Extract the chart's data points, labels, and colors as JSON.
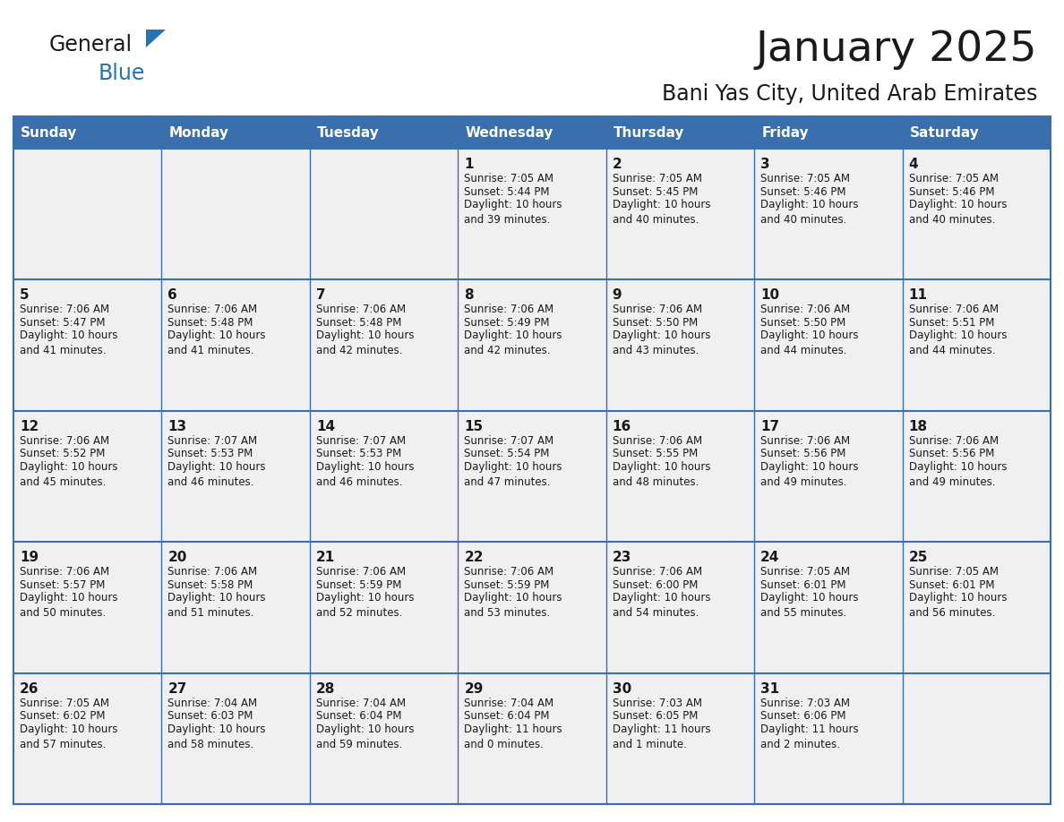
{
  "title": "January 2025",
  "subtitle": "Bani Yas City, United Arab Emirates",
  "days_of_week": [
    "Sunday",
    "Monday",
    "Tuesday",
    "Wednesday",
    "Thursday",
    "Friday",
    "Saturday"
  ],
  "header_bg": "#3a6fad",
  "header_text": "#FFFFFF",
  "cell_bg": "#f0f0f0",
  "cell_bg_empty_row": "#f0f0f0",
  "cell_border_color": "#3a6fad",
  "row_separator_color": "#3a6fad",
  "title_color": "#1a1a1a",
  "subtitle_color": "#1a1a1a",
  "logo_general_color": "#1a1a1a",
  "logo_blue_color": "#2575b5",
  "logo_triangle_color": "#2575b5",
  "calendar_data": [
    [
      {
        "day": null,
        "sunrise": null,
        "sunset": null,
        "daylight": null
      },
      {
        "day": null,
        "sunrise": null,
        "sunset": null,
        "daylight": null
      },
      {
        "day": null,
        "sunrise": null,
        "sunset": null,
        "daylight": null
      },
      {
        "day": 1,
        "sunrise": "7:05 AM",
        "sunset": "5:44 PM",
        "daylight": "10 hours\nand 39 minutes."
      },
      {
        "day": 2,
        "sunrise": "7:05 AM",
        "sunset": "5:45 PM",
        "daylight": "10 hours\nand 40 minutes."
      },
      {
        "day": 3,
        "sunrise": "7:05 AM",
        "sunset": "5:46 PM",
        "daylight": "10 hours\nand 40 minutes."
      },
      {
        "day": 4,
        "sunrise": "7:05 AM",
        "sunset": "5:46 PM",
        "daylight": "10 hours\nand 40 minutes."
      }
    ],
    [
      {
        "day": 5,
        "sunrise": "7:06 AM",
        "sunset": "5:47 PM",
        "daylight": "10 hours\nand 41 minutes."
      },
      {
        "day": 6,
        "sunrise": "7:06 AM",
        "sunset": "5:48 PM",
        "daylight": "10 hours\nand 41 minutes."
      },
      {
        "day": 7,
        "sunrise": "7:06 AM",
        "sunset": "5:48 PM",
        "daylight": "10 hours\nand 42 minutes."
      },
      {
        "day": 8,
        "sunrise": "7:06 AM",
        "sunset": "5:49 PM",
        "daylight": "10 hours\nand 42 minutes."
      },
      {
        "day": 9,
        "sunrise": "7:06 AM",
        "sunset": "5:50 PM",
        "daylight": "10 hours\nand 43 minutes."
      },
      {
        "day": 10,
        "sunrise": "7:06 AM",
        "sunset": "5:50 PM",
        "daylight": "10 hours\nand 44 minutes."
      },
      {
        "day": 11,
        "sunrise": "7:06 AM",
        "sunset": "5:51 PM",
        "daylight": "10 hours\nand 44 minutes."
      }
    ],
    [
      {
        "day": 12,
        "sunrise": "7:06 AM",
        "sunset": "5:52 PM",
        "daylight": "10 hours\nand 45 minutes."
      },
      {
        "day": 13,
        "sunrise": "7:07 AM",
        "sunset": "5:53 PM",
        "daylight": "10 hours\nand 46 minutes."
      },
      {
        "day": 14,
        "sunrise": "7:07 AM",
        "sunset": "5:53 PM",
        "daylight": "10 hours\nand 46 minutes."
      },
      {
        "day": 15,
        "sunrise": "7:07 AM",
        "sunset": "5:54 PM",
        "daylight": "10 hours\nand 47 minutes."
      },
      {
        "day": 16,
        "sunrise": "7:06 AM",
        "sunset": "5:55 PM",
        "daylight": "10 hours\nand 48 minutes."
      },
      {
        "day": 17,
        "sunrise": "7:06 AM",
        "sunset": "5:56 PM",
        "daylight": "10 hours\nand 49 minutes."
      },
      {
        "day": 18,
        "sunrise": "7:06 AM",
        "sunset": "5:56 PM",
        "daylight": "10 hours\nand 49 minutes."
      }
    ],
    [
      {
        "day": 19,
        "sunrise": "7:06 AM",
        "sunset": "5:57 PM",
        "daylight": "10 hours\nand 50 minutes."
      },
      {
        "day": 20,
        "sunrise": "7:06 AM",
        "sunset": "5:58 PM",
        "daylight": "10 hours\nand 51 minutes."
      },
      {
        "day": 21,
        "sunrise": "7:06 AM",
        "sunset": "5:59 PM",
        "daylight": "10 hours\nand 52 minutes."
      },
      {
        "day": 22,
        "sunrise": "7:06 AM",
        "sunset": "5:59 PM",
        "daylight": "10 hours\nand 53 minutes."
      },
      {
        "day": 23,
        "sunrise": "7:06 AM",
        "sunset": "6:00 PM",
        "daylight": "10 hours\nand 54 minutes."
      },
      {
        "day": 24,
        "sunrise": "7:05 AM",
        "sunset": "6:01 PM",
        "daylight": "10 hours\nand 55 minutes."
      },
      {
        "day": 25,
        "sunrise": "7:05 AM",
        "sunset": "6:01 PM",
        "daylight": "10 hours\nand 56 minutes."
      }
    ],
    [
      {
        "day": 26,
        "sunrise": "7:05 AM",
        "sunset": "6:02 PM",
        "daylight": "10 hours\nand 57 minutes."
      },
      {
        "day": 27,
        "sunrise": "7:04 AM",
        "sunset": "6:03 PM",
        "daylight": "10 hours\nand 58 minutes."
      },
      {
        "day": 28,
        "sunrise": "7:04 AM",
        "sunset": "6:04 PM",
        "daylight": "10 hours\nand 59 minutes."
      },
      {
        "day": 29,
        "sunrise": "7:04 AM",
        "sunset": "6:04 PM",
        "daylight": "11 hours\nand 0 minutes."
      },
      {
        "day": 30,
        "sunrise": "7:03 AM",
        "sunset": "6:05 PM",
        "daylight": "11 hours\nand 1 minute."
      },
      {
        "day": 31,
        "sunrise": "7:03 AM",
        "sunset": "6:06 PM",
        "daylight": "11 hours\nand 2 minutes."
      },
      {
        "day": null,
        "sunrise": null,
        "sunset": null,
        "daylight": null
      }
    ]
  ]
}
